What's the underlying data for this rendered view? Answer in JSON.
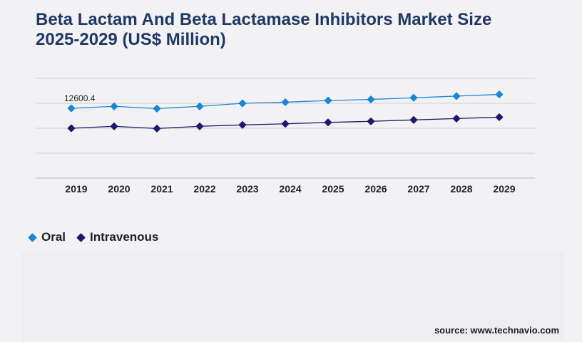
{
  "header": {
    "title_line1": "Beta Lactam And Beta Lactamase Inhibitors Market Size",
    "title_line2": "2025-2029 (US$ Million)"
  },
  "chart_data": {
    "type": "line",
    "title": "Beta Lactam And Beta Lactamase Inhibitors Market Size 2025-2029 (US$ Million)",
    "xlabel": "",
    "ylabel": "",
    "categories": [
      "2019",
      "2020",
      "2021",
      "2022",
      "2023",
      "2024",
      "2025",
      "2026",
      "2027",
      "2028",
      "2029"
    ],
    "ylim": [
      0,
      18000
    ],
    "grid": true,
    "legend_position": "bottom-left",
    "series": [
      {
        "name": "Oral",
        "color": "#1a86d6",
        "values": [
          12600.4,
          12950,
          12550,
          12950,
          13500,
          13700,
          14000,
          14200,
          14500,
          14800,
          15100
        ]
      },
      {
        "name": "Intravenous",
        "color": "#1b1a6b",
        "values": [
          9000,
          9350,
          8950,
          9350,
          9600,
          9800,
          10050,
          10250,
          10500,
          10750,
          11000
        ]
      }
    ],
    "annotations": [
      {
        "series": "Oral",
        "category": "2019",
        "text": "12600.4"
      }
    ]
  },
  "legend": {
    "items": [
      {
        "label": "Oral",
        "color": "#1a86d6"
      },
      {
        "label": "Intravenous",
        "color": "#1b1a6b"
      }
    ]
  },
  "footer": {
    "source": "source: www.technavio.com"
  }
}
